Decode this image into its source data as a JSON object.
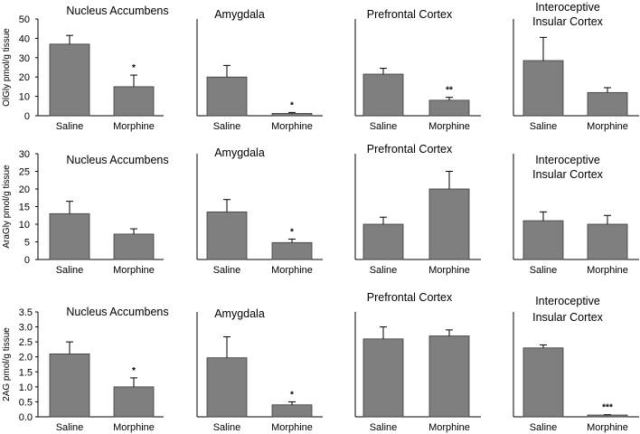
{
  "colors": {
    "bar": "#7f7f7f",
    "bar_stroke": "#3a3a3a",
    "axis": "#000000",
    "text": "#000000"
  },
  "chart_data": [
    {
      "type": "bar",
      "ylabel": "OlGly pmol/g tissue",
      "ylim": [
        0,
        50
      ],
      "yticks": [
        0,
        10,
        20,
        30,
        40,
        50
      ],
      "categories": [
        "Saline",
        "Morphine"
      ],
      "panels": [
        {
          "title": [
            "Nucleus Accumbens"
          ],
          "values": [
            37,
            15
          ],
          "errors": [
            4.5,
            6
          ],
          "significance": [
            "",
            "*"
          ]
        },
        {
          "title": [
            "Amygdala"
          ],
          "values": [
            20,
            1.2
          ],
          "errors": [
            6,
            0.5
          ],
          "significance": [
            "",
            "*"
          ]
        },
        {
          "title": [
            "Prefrontal Cortex"
          ],
          "values": [
            21.5,
            8
          ],
          "errors": [
            3,
            1.5
          ],
          "significance": [
            "",
            "**"
          ]
        },
        {
          "title": [
            "Interoceptive",
            "Insular Cortex"
          ],
          "values": [
            28.5,
            12
          ],
          "errors": [
            12,
            2.5
          ],
          "significance": [
            "",
            ""
          ]
        }
      ]
    },
    {
      "type": "bar",
      "ylabel": "AraGly pmol/g tissue",
      "ylim": [
        0,
        30
      ],
      "yticks": [
        0,
        5,
        10,
        15,
        20,
        25,
        30
      ],
      "categories": [
        "Saline",
        "Morphine"
      ],
      "panels": [
        {
          "title": [
            "Nucleus Accumbens"
          ],
          "values": [
            13,
            7.2
          ],
          "errors": [
            3.5,
            1.5
          ],
          "significance": [
            "",
            ""
          ]
        },
        {
          "title": [
            "Amygdala"
          ],
          "values": [
            13.5,
            4.8
          ],
          "errors": [
            3.5,
            1
          ],
          "significance": [
            "",
            "*"
          ]
        },
        {
          "title": [
            "Prefrontal Cortex"
          ],
          "values": [
            10,
            20
          ],
          "errors": [
            2,
            5
          ],
          "significance": [
            "",
            ""
          ]
        },
        {
          "title": [
            "Interoceptive",
            "Insular Cortex"
          ],
          "values": [
            11,
            10
          ],
          "errors": [
            2.5,
            2.5
          ],
          "significance": [
            "",
            ""
          ]
        }
      ]
    },
    {
      "type": "bar",
      "ylabel": "2AG pmol/g tissue",
      "ylim": [
        0,
        3.5
      ],
      "yticks": [
        0.0,
        0.5,
        1.0,
        1.5,
        2.0,
        2.5,
        3.0,
        3.5
      ],
      "categories": [
        "Saline",
        "Morphine"
      ],
      "panels": [
        {
          "title": [
            "Nucleus Accumbens"
          ],
          "values": [
            2.1,
            1.0
          ],
          "errors": [
            0.4,
            0.3
          ],
          "significance": [
            "",
            "*"
          ]
        },
        {
          "title": [
            "Amygdala"
          ],
          "values": [
            1.97,
            0.4
          ],
          "errors": [
            0.7,
            0.1
          ],
          "significance": [
            "",
            "*"
          ]
        },
        {
          "title": [
            "Prefrontal Cortex"
          ],
          "values": [
            2.6,
            2.7
          ],
          "errors": [
            0.4,
            0.2
          ],
          "significance": [
            "",
            ""
          ]
        },
        {
          "title": [
            "Interoceptive",
            "Insular Cortex"
          ],
          "values": [
            2.3,
            0.05
          ],
          "errors": [
            0.1,
            0.02
          ],
          "significance": [
            "",
            "***"
          ]
        }
      ]
    }
  ]
}
